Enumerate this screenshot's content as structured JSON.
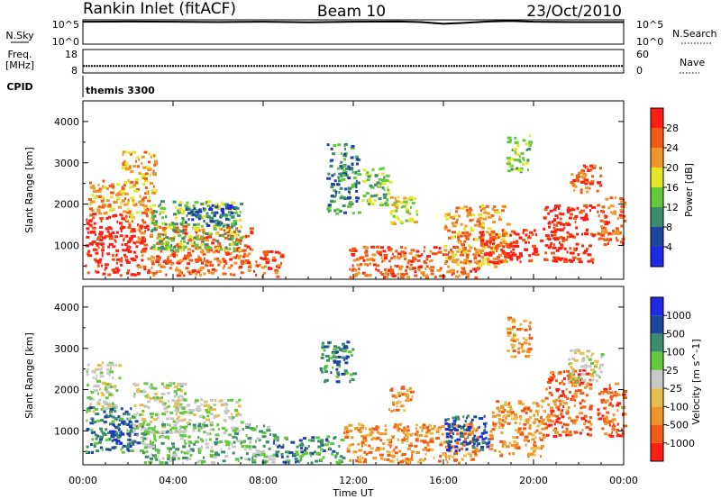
{
  "header": {
    "station": "Rankin Inlet (fitACF)",
    "beam": "Beam 10",
    "date": "23/Oct/2010"
  },
  "noise_panel": {
    "left_label": "N.Sky",
    "left_ticks": [
      "10^5",
      "10^0"
    ],
    "right_label": "N.Search",
    "right_ticks": [
      "10^5",
      "10^0"
    ]
  },
  "freq_panel": {
    "left_label_1": "Freq.",
    "left_label_2": "[MHz]",
    "left_ticks": [
      "18",
      "8"
    ],
    "right_label": "Nave",
    "right_ticks": [
      "60",
      "0"
    ]
  },
  "cpid": {
    "label": "CPID",
    "value": "themis 3300"
  },
  "x_axis": {
    "label": "Time UT",
    "ticks": [
      "00:00",
      "04:00",
      "08:00",
      "12:00",
      "16:00",
      "20:00",
      "00:00"
    ]
  },
  "colors": {
    "power": [
      "#1e28e6",
      "#1e46a0",
      "#3c8c6e",
      "#64c83c",
      "#e6e628",
      "#f09628",
      "#f05a14",
      "#ff1e14"
    ],
    "velocity": [
      "#ff1e14",
      "#f05a14",
      "#f09628",
      "#e6be50",
      "#c8c8c8",
      "#64c83c",
      "#3c8c6e",
      "#1e46a0",
      "#1e28e6"
    ]
  },
  "chart_data": [
    {
      "type": "line",
      "name": "noise",
      "xlabel": "",
      "ylabel": "",
      "xlim": [
        0,
        24
      ],
      "y_scale": "log",
      "ylim": [
        1,
        100000
      ],
      "series": [
        {
          "x": [
            0,
            2,
            4,
            6,
            8,
            10,
            12,
            14,
            15,
            16,
            17,
            18,
            19,
            20,
            22,
            24
          ],
          "y": [
            40000,
            45000,
            40000,
            35000,
            40000,
            30000,
            40000,
            45000,
            35000,
            15000,
            25000,
            45000,
            60000,
            40000,
            35000,
            35000
          ]
        }
      ]
    },
    {
      "type": "scatter",
      "name": "frequency",
      "xlim": [
        0,
        24
      ],
      "ylim": [
        8,
        18
      ],
      "series": [
        {
          "x": [
            0,
            4,
            8,
            12,
            16,
            20,
            24
          ],
          "y": [
            11,
            11,
            11,
            11,
            11,
            11,
            11
          ]
        }
      ]
    },
    {
      "type": "heatmap",
      "name": "power",
      "ylabel": "Slant Range [km]",
      "colorbar_label": "Power [dB]",
      "colorbar_ticks": [
        "28",
        "24",
        "20",
        "16",
        "12",
        "8",
        "4"
      ],
      "xlim": [
        0,
        24
      ],
      "ylim": [
        180,
        4500
      ],
      "yticks": [
        "4000",
        "3000",
        "2000",
        "1000"
      ],
      "regions": [
        {
          "t0": 0.1,
          "t1": 2.4,
          "r0": 300,
          "r1": 1800,
          "level": 7
        },
        {
          "t0": 0.2,
          "t1": 1.8,
          "r0": 1800,
          "r1": 2600,
          "level": 5
        },
        {
          "t0": 1.7,
          "t1": 3.2,
          "r0": 1500,
          "r1": 3300,
          "level": 5
        },
        {
          "t0": 2.4,
          "t1": 7.5,
          "r0": 300,
          "r1": 1500,
          "level": 6
        },
        {
          "t0": 3.0,
          "t1": 7.0,
          "r0": 900,
          "r1": 2100,
          "level": 3
        },
        {
          "t0": 4.5,
          "t1": 6.8,
          "r0": 1500,
          "r1": 2000,
          "level": 1
        },
        {
          "t0": 7.5,
          "t1": 8.8,
          "r0": 250,
          "r1": 900,
          "level": 6
        },
        {
          "t0": 10.8,
          "t1": 12.2,
          "r0": 1800,
          "r1": 3500,
          "level": 2
        },
        {
          "t0": 12.3,
          "t1": 13.6,
          "r0": 2000,
          "r1": 2900,
          "level": 3
        },
        {
          "t0": 13.6,
          "t1": 14.8,
          "r0": 1500,
          "r1": 2200,
          "level": 4
        },
        {
          "t0": 11.8,
          "t1": 17.5,
          "r0": 250,
          "r1": 1000,
          "level": 6
        },
        {
          "t0": 16.0,
          "t1": 18.8,
          "r0": 500,
          "r1": 2000,
          "level": 5
        },
        {
          "t0": 17.5,
          "t1": 20.3,
          "r0": 600,
          "r1": 1400,
          "level": 7
        },
        {
          "t0": 18.8,
          "t1": 19.8,
          "r0": 2800,
          "r1": 3700,
          "level": 3
        },
        {
          "t0": 20.4,
          "t1": 22.6,
          "r0": 600,
          "r1": 2000,
          "level": 7
        },
        {
          "t0": 21.6,
          "t1": 23.0,
          "r0": 2300,
          "r1": 3000,
          "level": 6
        },
        {
          "t0": 22.8,
          "t1": 24.0,
          "r0": 1000,
          "r1": 2200,
          "level": 6
        }
      ]
    },
    {
      "type": "heatmap",
      "name": "velocity",
      "ylabel": "Slant Range [km]",
      "colorbar_label": "Velocity [m s^-1]",
      "colorbar_ticks": [
        "1000",
        "500",
        "100",
        "25",
        "-25",
        "-100",
        "-500",
        "-1000"
      ],
      "xlim": [
        0,
        24
      ],
      "ylim": [
        180,
        4500
      ],
      "yticks": [
        "4000",
        "3000",
        "2000",
        "1000"
      ],
      "regions": [
        {
          "t0": 0.1,
          "t1": 1.6,
          "r0": 1500,
          "r1": 2700,
          "level": 4
        },
        {
          "t0": 0.1,
          "t1": 2.2,
          "r0": 500,
          "r1": 1600,
          "level": 6
        },
        {
          "t0": 1.2,
          "t1": 2.4,
          "r0": 600,
          "r1": 1300,
          "level": 7
        },
        {
          "t0": 2.2,
          "t1": 4.5,
          "r0": 900,
          "r1": 2200,
          "level": 4
        },
        {
          "t0": 2.5,
          "t1": 8.5,
          "r0": 250,
          "r1": 1200,
          "level": 5
        },
        {
          "t0": 4.0,
          "t1": 7.0,
          "r0": 1200,
          "r1": 1800,
          "level": 4
        },
        {
          "t0": 8.4,
          "t1": 11.5,
          "r0": 250,
          "r1": 900,
          "level": 6
        },
        {
          "t0": 10.5,
          "t1": 12.0,
          "r0": 2200,
          "r1": 3200,
          "level": 6
        },
        {
          "t0": 11.5,
          "t1": 17.5,
          "r0": 250,
          "r1": 1200,
          "level": 2
        },
        {
          "t0": 13.5,
          "t1": 14.6,
          "r0": 1500,
          "r1": 2100,
          "level": 2
        },
        {
          "t0": 16.0,
          "t1": 18.0,
          "r0": 500,
          "r1": 1400,
          "level": 7
        },
        {
          "t0": 18.0,
          "t1": 20.5,
          "r0": 400,
          "r1": 1800,
          "level": 2
        },
        {
          "t0": 18.8,
          "t1": 19.8,
          "r0": 2800,
          "r1": 3800,
          "level": 2
        },
        {
          "t0": 20.5,
          "t1": 22.5,
          "r0": 900,
          "r1": 2500,
          "level": 1
        },
        {
          "t0": 21.5,
          "t1": 23.0,
          "r0": 2200,
          "r1": 3000,
          "level": 4
        },
        {
          "t0": 22.8,
          "t1": 24.0,
          "r0": 900,
          "r1": 2200,
          "level": 1
        }
      ]
    }
  ]
}
